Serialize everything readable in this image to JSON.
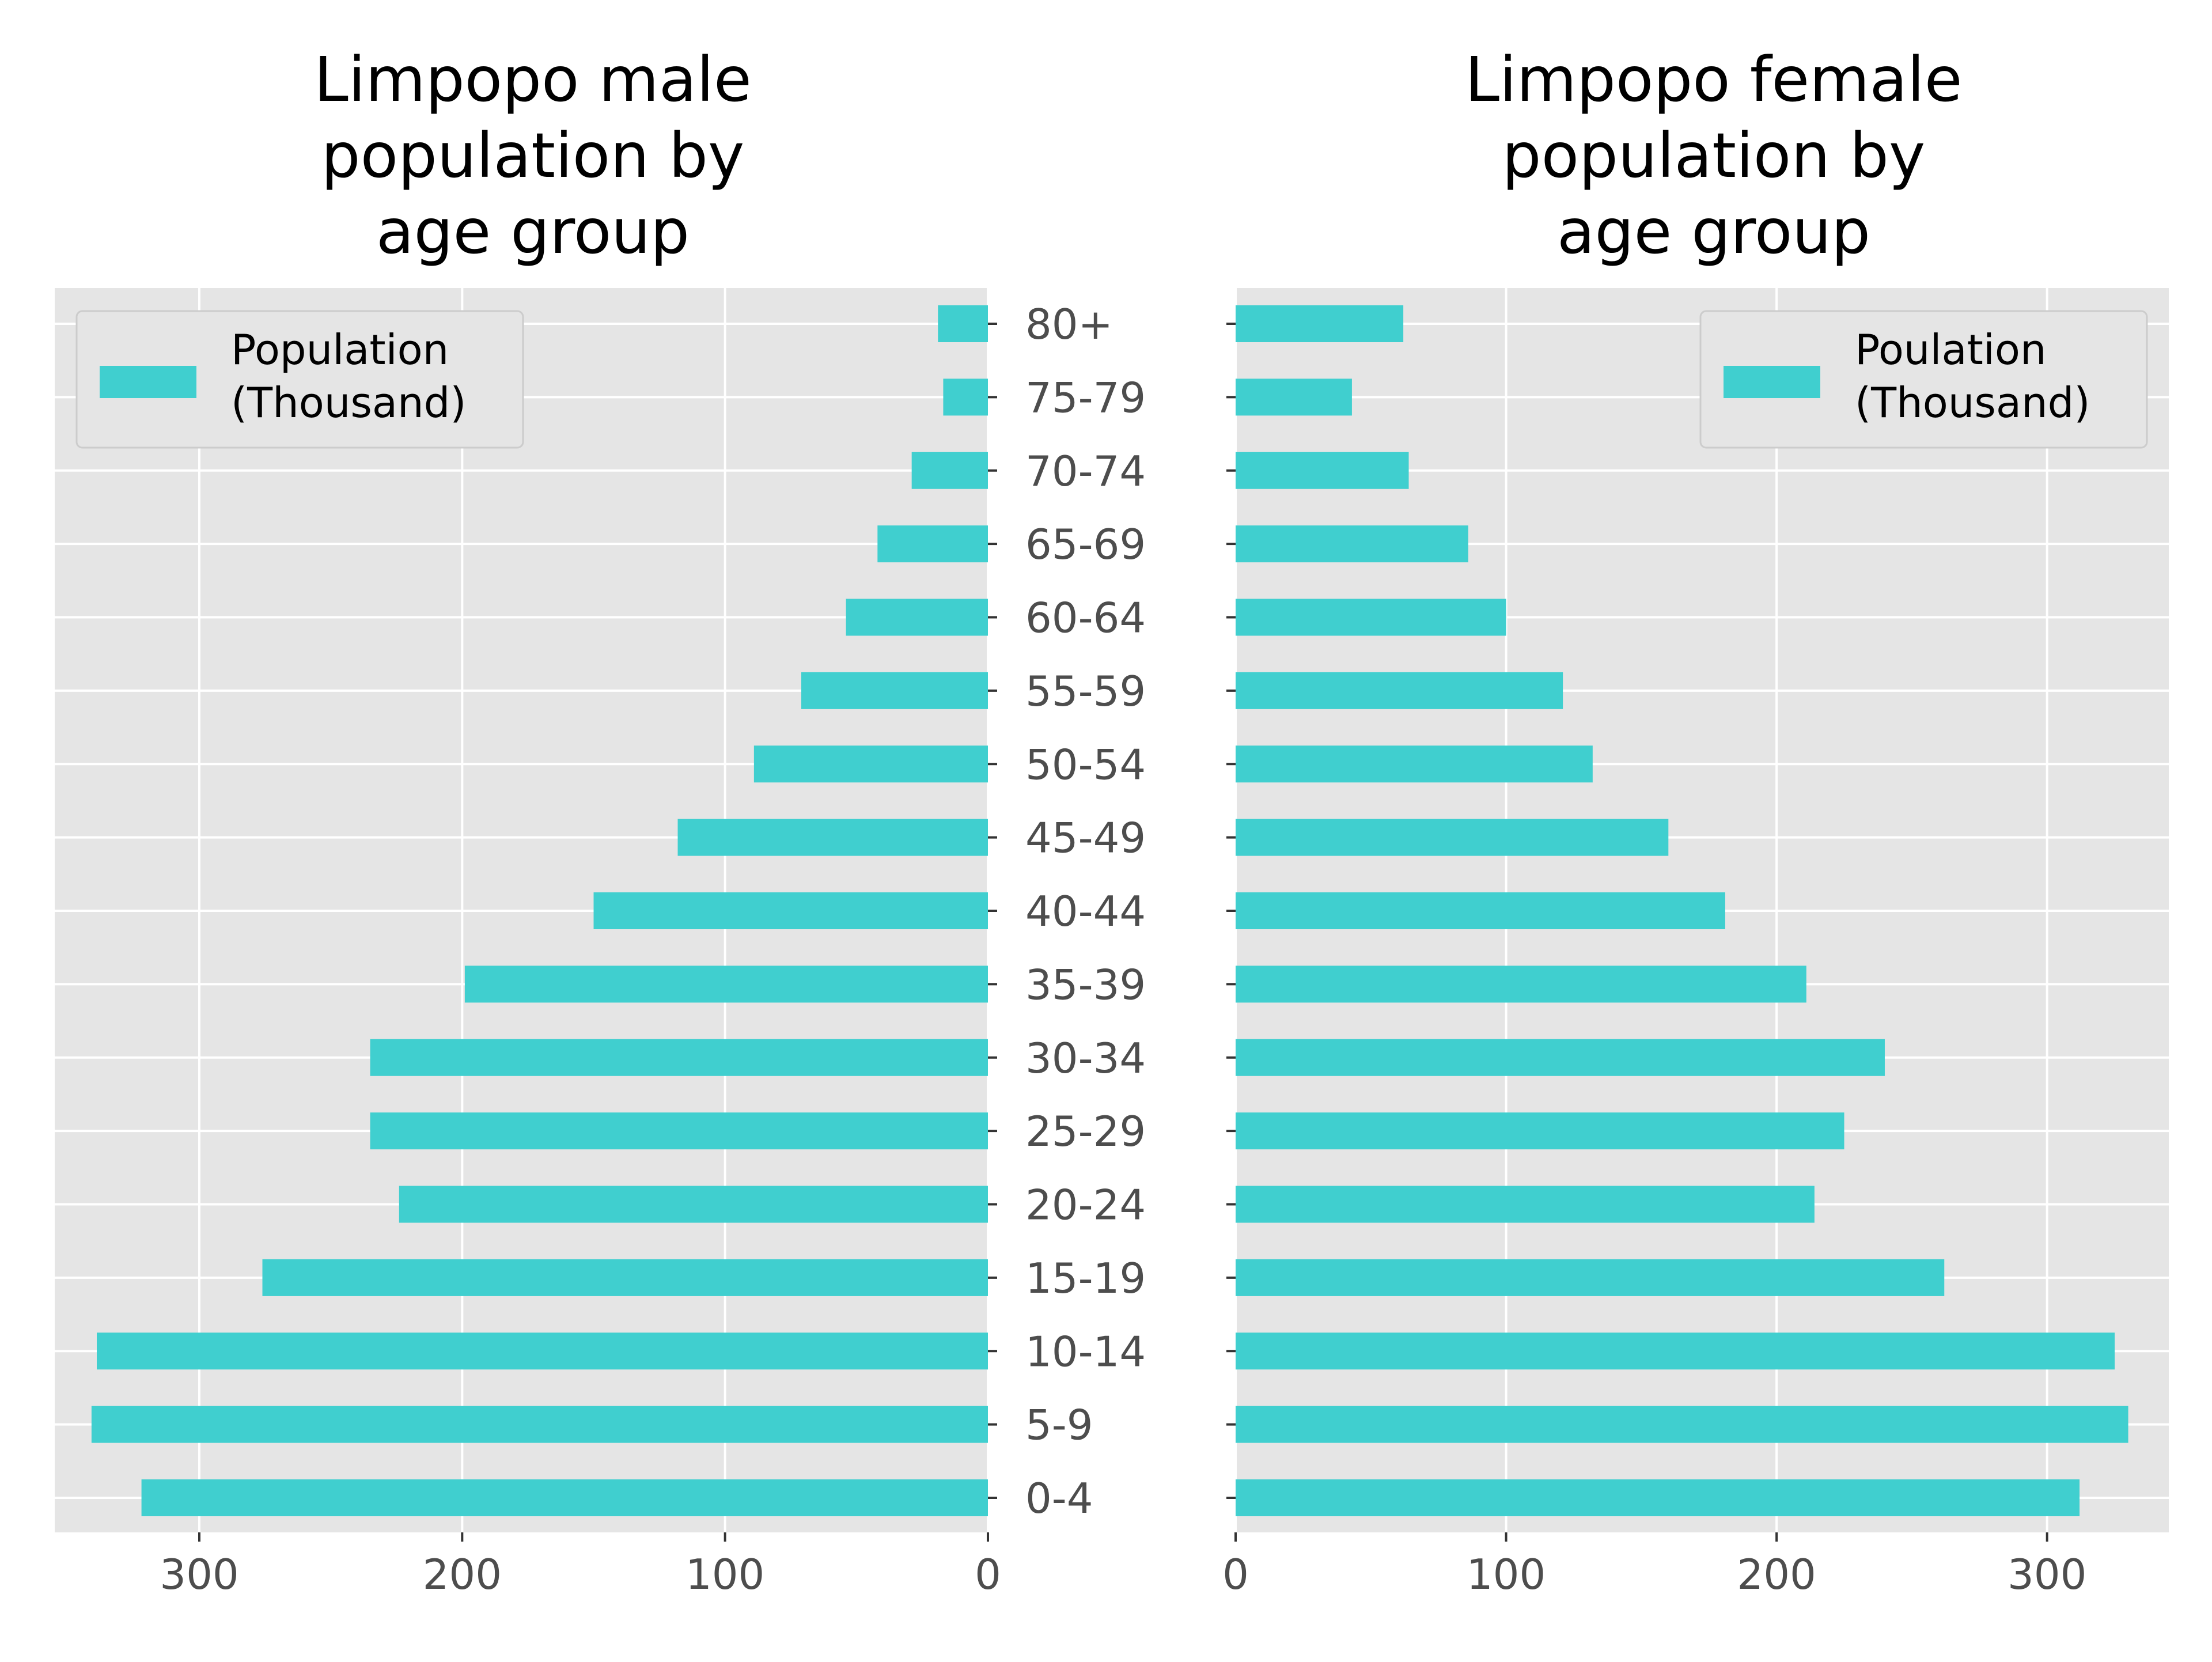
{
  "chart_data": [
    {
      "type": "bar",
      "orientation": "horizontal",
      "title": "Limpopo male\npopulation by\nage group",
      "categories": [
        "0-4",
        "5-9",
        "10-14",
        "15-19",
        "20-24",
        "25-29",
        "30-34",
        "35-39",
        "40-44",
        "45-49",
        "50-54",
        "55-59",
        "60-64",
        "65-69",
        "70-74",
        "75-79",
        "80+"
      ],
      "series": [
        {
          "name": "Population\n(Thousand)",
          "values": [
            322,
            341,
            339,
            276,
            224,
            235,
            235,
            199,
            150,
            118,
            89,
            71,
            54,
            42,
            29,
            17,
            19
          ]
        }
      ],
      "xlim": [
        355,
        0
      ],
      "xticks": [
        300,
        200,
        100,
        0
      ],
      "x_inverted": true,
      "grid": true,
      "legend_position": "upper left",
      "bar_color": "#40cfcf",
      "background": "#e5e5e5"
    },
    {
      "type": "bar",
      "orientation": "horizontal",
      "title": "Limpopo female\npopulation by\nage group",
      "categories": [
        "0-4",
        "5-9",
        "10-14",
        "15-19",
        "20-24",
        "25-29",
        "30-34",
        "35-39",
        "40-44",
        "45-49",
        "50-54",
        "55-59",
        "60-64",
        "65-69",
        "70-74",
        "75-79",
        "80+"
      ],
      "series": [
        {
          "name": "Poulation\n(Thousand)",
          "values": [
            312,
            330,
            325,
            262,
            214,
            225,
            240,
            211,
            181,
            160,
            132,
            121,
            100,
            86,
            64,
            43,
            62
          ]
        }
      ],
      "xlim": [
        0,
        345
      ],
      "xticks": [
        0,
        100,
        200,
        300
      ],
      "x_inverted": false,
      "grid": true,
      "legend_position": "upper right",
      "bar_color": "#40cfcf",
      "background": "#e5e5e5"
    }
  ]
}
